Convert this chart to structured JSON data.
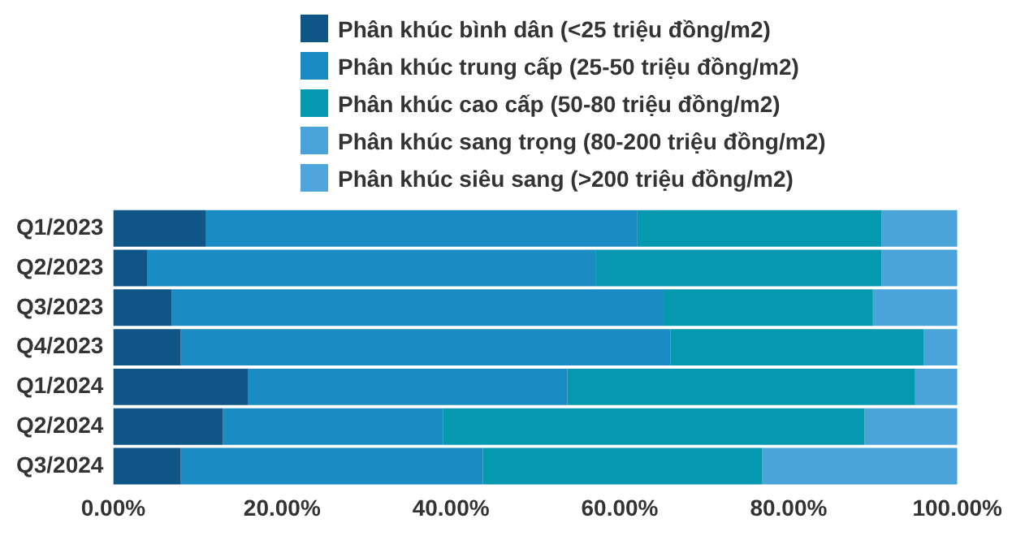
{
  "chart_data": {
    "type": "bar",
    "orientation": "horizontal",
    "stacked": true,
    "legend": "top",
    "grid": false,
    "categories": [
      "Q1/2023",
      "Q2/2023",
      "Q3/2023",
      "Q4/2023",
      "Q1/2024",
      "Q2/2024",
      "Q3/2024"
    ],
    "xlim": [
      0,
      100
    ],
    "xticks": [
      {
        "value": 0,
        "label": "0.00%"
      },
      {
        "value": 20,
        "label": "20.00%"
      },
      {
        "value": 40,
        "label": "40.00%"
      },
      {
        "value": 60,
        "label": "60.00%"
      },
      {
        "value": 80,
        "label": "80.00%"
      },
      {
        "value": 100,
        "label": "100.00%"
      }
    ],
    "series": [
      {
        "name": "Phân khúc bình dân (<25 triệu đồng/m2)",
        "color": "#0f5586",
        "values": [
          11,
          4,
          6.9,
          8,
          16,
          13,
          8
        ]
      },
      {
        "name": "Phân khúc trung cấp (25-50 triệu đồng/m2)",
        "color": "#1a8cc4",
        "values": [
          51.1,
          53.2,
          58.3,
          58,
          37.8,
          26.1,
          35.8
        ]
      },
      {
        "name": "Phân khúc cao cấp (50-80 triệu đồng/m2)",
        "color": "#0599b0",
        "values": [
          28.9,
          33.8,
          24.8,
          30,
          41.2,
          49.9,
          33.1
        ]
      },
      {
        "name": "Phân khúc sang trọng (80-200 triệu đồng/m2)",
        "color": "#4aa3d9",
        "values": [
          9,
          9,
          10,
          4,
          5,
          11,
          23.1
        ]
      },
      {
        "name": "Phân khúc siêu sang (>200 triệu đồng/m2)",
        "color": "#4fa6dc",
        "values": [
          0,
          0,
          0,
          0,
          0,
          0,
          0
        ]
      }
    ]
  }
}
